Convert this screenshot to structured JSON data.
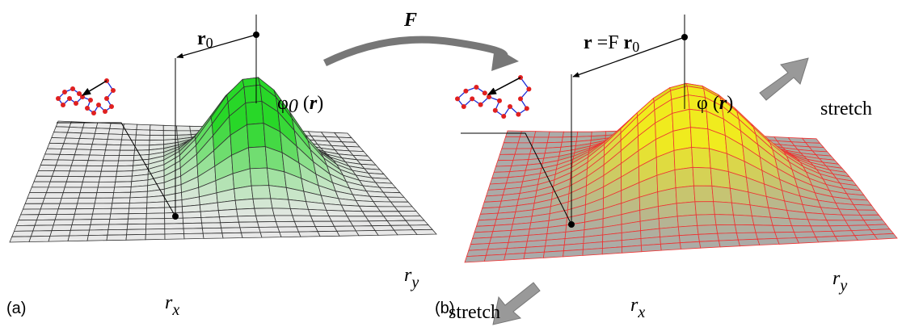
{
  "transform": {
    "label": "F"
  },
  "panels": [
    {
      "label": "(a)",
      "vector": {
        "parts": [
          "r"
        ],
        "subscript": "0"
      },
      "field": {
        "symbol": "φ",
        "subscript": "0",
        "argument": [
          "(",
          "r",
          ")"
        ]
      },
      "axes": {
        "x": {
          "symbol": "r",
          "subscript": "x"
        },
        "y": {
          "symbol": "r",
          "subscript": "y"
        }
      }
    },
    {
      "label": "(b)",
      "vector": {
        "parts": [
          "r",
          " =F ",
          "r"
        ],
        "subscript": "0"
      },
      "field": {
        "symbol": "φ",
        "argument": [
          "(",
          "r",
          ")"
        ]
      },
      "axes": {
        "x": {
          "symbol": "r",
          "subscript": "x"
        },
        "y": {
          "symbol": "r",
          "subscript": "y"
        }
      },
      "stretch_labels": [
        "stretch",
        "stretch"
      ]
    }
  ]
}
